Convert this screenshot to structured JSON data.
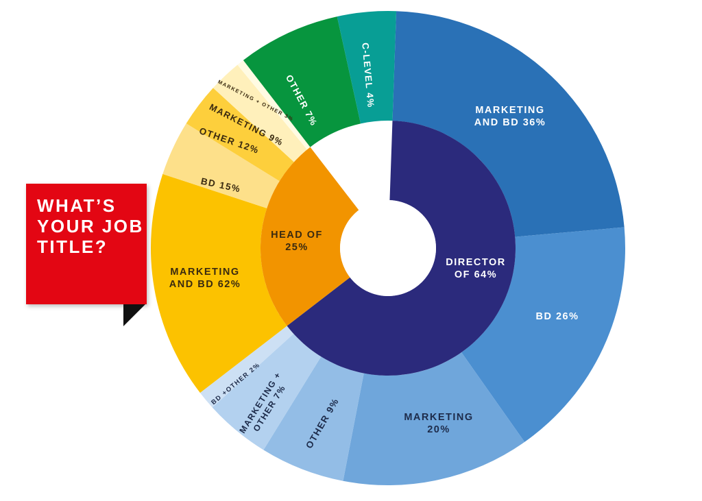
{
  "title_lines": [
    "WHAT’S",
    "YOUR JOB",
    "TITLE?"
  ],
  "chart_data": {
    "type": "sunburst",
    "title": "WHAT’S YOUR JOB TITLE?",
    "inner": [
      {
        "name": "DIRECTOR OF 64%",
        "lines": [
          "DIRECTOR",
          "OF 64%"
        ],
        "value": 64,
        "color": "#2b2a7c",
        "text_color": "#ffffff"
      },
      {
        "name": "HEAD OF 25%",
        "lines": [
          "HEAD OF",
          "25%"
        ],
        "value": 25,
        "color": "#f29400",
        "text_color": "#3a2a10"
      }
    ],
    "outer": [
      {
        "parent": "DIRECTOR OF 64%",
        "lines": [
          "MARKETING",
          "AND BD 36%"
        ],
        "value": 36,
        "color": "#2a71b6",
        "text_color": "#ffffff"
      },
      {
        "parent": "DIRECTOR OF 64%",
        "lines": [
          "BD 26%"
        ],
        "value": 26,
        "color": "#4b8fd0",
        "text_color": "#ffffff"
      },
      {
        "parent": "DIRECTOR OF 64%",
        "lines": [
          "MARKETING",
          "20%"
        ],
        "value": 20,
        "color": "#6fa6db",
        "text_color": "#1d2b4a"
      },
      {
        "parent": "DIRECTOR OF 64%",
        "lines": [
          "OTHER 9%"
        ],
        "value": 9,
        "color": "#93bde6",
        "text_color": "#1d2b4a"
      },
      {
        "parent": "DIRECTOR OF 64%",
        "lines": [
          "MARKETING +",
          "OTHER 7%"
        ],
        "value": 7,
        "color": "#b3d1ef",
        "text_color": "#1d2b4a"
      },
      {
        "parent": "DIRECTOR OF 64%",
        "lines": [
          "BD +OTHER 2%"
        ],
        "value": 2,
        "color": "#cde0f4",
        "text_color": "#1d2b4a"
      },
      {
        "parent": "HEAD OF 25%",
        "lines": [
          "MARKETING",
          "AND BD 62%"
        ],
        "value": 62,
        "color": "#fcc200",
        "text_color": "#3a2a10"
      },
      {
        "parent": "HEAD OF 25%",
        "lines": [
          "BD 15%"
        ],
        "value": 15,
        "color": "#fde08a",
        "text_color": "#3a2a10"
      },
      {
        "parent": "HEAD OF 25%",
        "lines": [
          "OTHER 12%"
        ],
        "value": 12,
        "color": "#fdcf3c",
        "text_color": "#3a2a10"
      },
      {
        "parent": "HEAD OF 25%",
        "lines": [
          "MARKETING 9%"
        ],
        "value": 9,
        "color": "#fff0bb",
        "text_color": "#3a2a10"
      },
      {
        "parent": "HEAD OF 25%",
        "lines": [
          "MARKETING + OTHER 3%"
        ],
        "value": 3,
        "color": "#fffbe3",
        "text_color": "#3a2a10"
      },
      {
        "parent": "",
        "lines": [
          "OTHER 7%"
        ],
        "value": 7,
        "color": "#07953e",
        "text_color": "#ffffff"
      },
      {
        "parent": "",
        "lines": [
          "C-LEVEL 4%"
        ],
        "value": 4,
        "color": "#089e95",
        "text_color": "#ffffff"
      }
    ]
  }
}
